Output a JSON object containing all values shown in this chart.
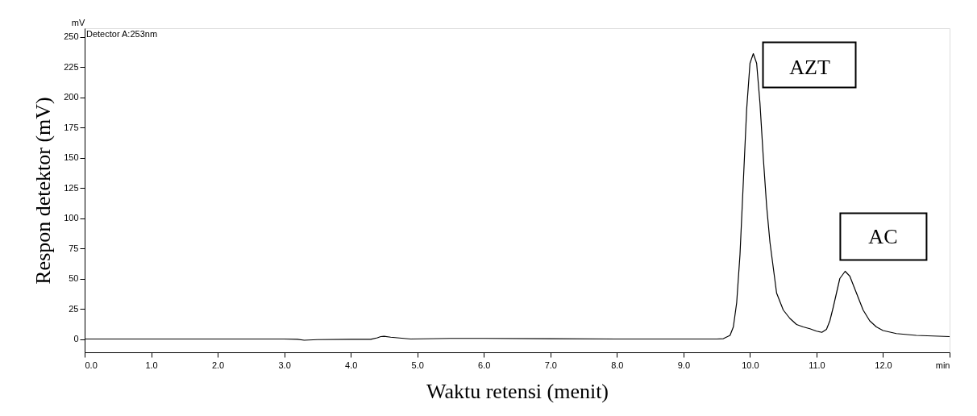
{
  "chart_data": {
    "type": "line",
    "xlabel": "Waktu retensi (menit)",
    "ylabel": "Respon detektor (mV)",
    "annotations": [
      "mV",
      "Detector A:253nm",
      {
        "text": "AZT",
        "x": 10.05,
        "y": 236
      },
      {
        "text": "AC",
        "x": 11.43,
        "y": 56
      }
    ],
    "series": [
      {
        "color": "#000000",
        "x": [
          0,
          1,
          2,
          3,
          3.2,
          3.3,
          3.5,
          4.0,
          4.3,
          4.4,
          4.45,
          4.5,
          4.6,
          4.7,
          4.9,
          5.5,
          6.0,
          7.0,
          8.0,
          9.0,
          9.5,
          9.6,
          9.7,
          9.75,
          9.8,
          9.85,
          9.9,
          9.95,
          10.0,
          10.05,
          10.1,
          10.15,
          10.2,
          10.25,
          10.3,
          10.4,
          10.5,
          10.6,
          10.7,
          10.8,
          10.9,
          11.0,
          11.08,
          11.15,
          11.2,
          11.25,
          11.3,
          11.35,
          11.43,
          11.5,
          11.6,
          11.7,
          11.8,
          11.9,
          12.0,
          12.2,
          12.5,
          13.0
        ],
        "values": [
          0,
          0,
          0,
          0,
          -0.3,
          -1,
          -0.5,
          -0.3,
          -0.3,
          1,
          2,
          2.2,
          1.5,
          1,
          0,
          0.5,
          0.5,
          0.2,
          0,
          0,
          0,
          0.3,
          3,
          10,
          30,
          70,
          130,
          190,
          228,
          236,
          228,
          195,
          150,
          110,
          80,
          38,
          24,
          17,
          12,
          10,
          8.5,
          6.5,
          5.5,
          8,
          15,
          26,
          38,
          50,
          56,
          52,
          38,
          24,
          15,
          10,
          7,
          4.5,
          3,
          2
        ]
      }
    ],
    "xlim": [
      0,
      13.0
    ],
    "ylim": [
      -11,
      257
    ],
    "xticks": [
      {
        "value": 0,
        "label": "0.0"
      },
      {
        "value": 1,
        "label": "1.0"
      },
      {
        "value": 2,
        "label": "2.0"
      },
      {
        "value": 3,
        "label": "3.0"
      },
      {
        "value": 4,
        "label": "4.0"
      },
      {
        "value": 5,
        "label": "5.0"
      },
      {
        "value": 6,
        "label": "6.0"
      },
      {
        "value": 7,
        "label": "7.0"
      },
      {
        "value": 8,
        "label": "8.0"
      },
      {
        "value": 9,
        "label": "9.0"
      },
      {
        "value": 10,
        "label": "10.0"
      },
      {
        "value": 11,
        "label": "11.0"
      },
      {
        "value": 12,
        "label": "12.0"
      },
      {
        "value": 13,
        "label": "min"
      }
    ],
    "yticks": [
      0,
      25,
      50,
      75,
      100,
      125,
      150,
      175,
      200,
      225,
      250
    ],
    "grid": false,
    "marker": "none",
    "line_style": "solid"
  }
}
